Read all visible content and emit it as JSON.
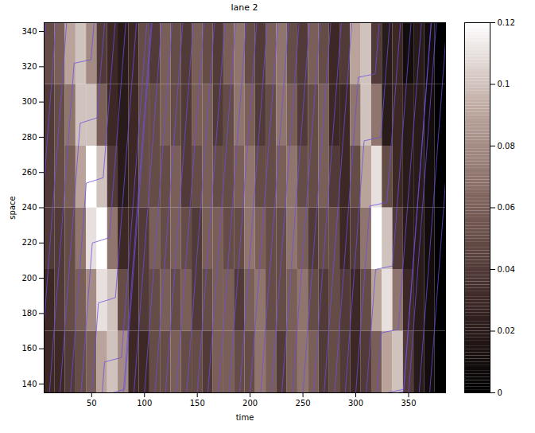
{
  "chart_data": {
    "type": "heatmap",
    "title": "lane 2",
    "x_label": "time",
    "y_label": "space",
    "xlim": [
      5,
      385
    ],
    "xticks": [
      50,
      100,
      150,
      200,
      250,
      300,
      350
    ],
    "ylim": [
      135,
      345
    ],
    "yticks": [
      140,
      160,
      180,
      200,
      220,
      240,
      260,
      280,
      300,
      320,
      340
    ],
    "heatmap": {
      "x_edges": [
        5,
        15,
        25,
        35,
        45,
        55,
        65,
        75,
        85,
        95,
        105,
        115,
        125,
        135,
        145,
        155,
        165,
        175,
        185,
        195,
        205,
        215,
        225,
        235,
        245,
        255,
        265,
        275,
        285,
        295,
        305,
        315,
        325,
        335,
        345,
        355,
        365,
        375,
        385
      ],
      "y_edges": [
        135,
        170,
        205,
        240,
        275,
        310,
        345
      ],
      "cells": [
        [
          0.03,
          0.03,
          0.04,
          0.05,
          0.06,
          0.09,
          0.1,
          0.08,
          0.03,
          0.03,
          0.05,
          0.05,
          0.06,
          0.05,
          0.05,
          0.04,
          0.06,
          0.06,
          0.05,
          0.05,
          0.07,
          0.06,
          0.04,
          0.06,
          0.07,
          0.06,
          0.04,
          0.05,
          0.04,
          0.03,
          0.04,
          0.06,
          0.09,
          0.1,
          0.04,
          0.02,
          0.01,
          0.0
        ],
        [
          0.03,
          0.04,
          0.05,
          0.06,
          0.08,
          0.11,
          0.1,
          0.05,
          0.03,
          0.04,
          0.05,
          0.06,
          0.05,
          0.06,
          0.04,
          0.05,
          0.06,
          0.06,
          0.04,
          0.06,
          0.07,
          0.05,
          0.05,
          0.06,
          0.07,
          0.05,
          0.04,
          0.05,
          0.04,
          0.03,
          0.05,
          0.09,
          0.11,
          0.07,
          0.03,
          0.02,
          0.01,
          0.0
        ],
        [
          0.04,
          0.04,
          0.05,
          0.07,
          0.11,
          0.12,
          0.07,
          0.03,
          0.03,
          0.04,
          0.06,
          0.05,
          0.06,
          0.05,
          0.04,
          0.06,
          0.06,
          0.05,
          0.05,
          0.07,
          0.06,
          0.05,
          0.05,
          0.07,
          0.06,
          0.04,
          0.05,
          0.05,
          0.03,
          0.04,
          0.07,
          0.12,
          0.1,
          0.04,
          0.02,
          0.02,
          0.01,
          0.0
        ],
        [
          0.04,
          0.05,
          0.06,
          0.09,
          0.12,
          0.1,
          0.04,
          0.02,
          0.03,
          0.05,
          0.05,
          0.05,
          0.06,
          0.04,
          0.05,
          0.06,
          0.05,
          0.05,
          0.06,
          0.07,
          0.05,
          0.05,
          0.06,
          0.07,
          0.05,
          0.05,
          0.06,
          0.04,
          0.03,
          0.05,
          0.09,
          0.11,
          0.05,
          0.03,
          0.02,
          0.02,
          0.01,
          0.0
        ],
        [
          0.04,
          0.05,
          0.07,
          0.1,
          0.1,
          0.06,
          0.03,
          0.02,
          0.03,
          0.05,
          0.05,
          0.06,
          0.05,
          0.04,
          0.06,
          0.06,
          0.04,
          0.05,
          0.07,
          0.06,
          0.04,
          0.05,
          0.07,
          0.06,
          0.04,
          0.05,
          0.06,
          0.03,
          0.03,
          0.07,
          0.1,
          0.07,
          0.02,
          0.03,
          0.02,
          0.02,
          0.01,
          0.0
        ],
        [
          0.05,
          0.06,
          0.09,
          0.1,
          0.08,
          0.04,
          0.03,
          0.02,
          0.03,
          0.05,
          0.04,
          0.06,
          0.05,
          0.04,
          0.06,
          0.05,
          0.04,
          0.06,
          0.07,
          0.05,
          0.04,
          0.06,
          0.07,
          0.05,
          0.04,
          0.06,
          0.05,
          0.03,
          0.04,
          0.09,
          0.1,
          0.04,
          0.02,
          0.03,
          0.01,
          0.02,
          0.01,
          0.0
        ]
      ]
    },
    "colorbar": {
      "range": [
        0,
        0.12
      ],
      "ticks": [
        0,
        0.02,
        0.04,
        0.06,
        0.08,
        0.1,
        0.12
      ]
    },
    "trajectories": {
      "color": "#6b4fe0",
      "series": [
        {
          "x": [
            -20,
            6.3
          ],
          "y": [
            135,
            345
          ]
        },
        {
          "x": [
            -10,
            16.3
          ],
          "y": [
            135,
            345
          ]
        },
        {
          "x": [
            0,
            26.3
          ],
          "y": [
            135,
            345
          ]
        },
        {
          "x": [
            10,
            33.4,
            49.4,
            52.3
          ],
          "y": [
            135,
            322,
            324,
            345
          ]
        },
        {
          "x": [
            20,
            39.1,
            55.1,
            62.2
          ],
          "y": [
            135,
            288,
            291,
            345
          ]
        },
        {
          "x": [
            30,
            44.9,
            60.9,
            72.3
          ],
          "y": [
            135,
            254,
            257,
            345
          ]
        },
        {
          "x": [
            40,
            50.6,
            66.7,
            82.3
          ],
          "y": [
            135,
            220,
            223,
            345
          ]
        },
        {
          "x": [
            50,
            56.4,
            72.5,
            92.4
          ],
          "y": [
            135,
            186,
            189,
            345
          ]
        },
        {
          "x": [
            60,
            62.2,
            78.2,
            102.3
          ],
          "y": [
            135,
            152.5,
            155,
            345
          ]
        },
        {
          "x": [
            70,
            81.2,
            107.2
          ],
          "y": [
            135,
            137,
            345
          ]
        },
        {
          "x": [
            80,
            106.3
          ],
          "y": [
            135,
            345
          ]
        },
        {
          "x": [
            90,
            116.3
          ],
          "y": [
            135,
            345
          ]
        },
        {
          "x": [
            100,
            126.3
          ],
          "y": [
            135,
            345
          ]
        },
        {
          "x": [
            110,
            136.3
          ],
          "y": [
            135,
            345
          ]
        },
        {
          "x": [
            120,
            146.3
          ],
          "y": [
            135,
            345
          ]
        },
        {
          "x": [
            130,
            156.3
          ],
          "y": [
            135,
            345
          ]
        },
        {
          "x": [
            140,
            166.3
          ],
          "y": [
            135,
            345
          ]
        },
        {
          "x": [
            150,
            176.3
          ],
          "y": [
            135,
            345
          ]
        },
        {
          "x": [
            160,
            186.3
          ],
          "y": [
            135,
            345
          ]
        },
        {
          "x": [
            170,
            196.3
          ],
          "y": [
            135,
            345
          ]
        },
        {
          "x": [
            180,
            206.3
          ],
          "y": [
            135,
            345
          ]
        },
        {
          "x": [
            190,
            216.3
          ],
          "y": [
            135,
            345
          ]
        },
        {
          "x": [
            200,
            226.3
          ],
          "y": [
            135,
            345
          ]
        },
        {
          "x": [
            210,
            236.3
          ],
          "y": [
            135,
            345
          ]
        },
        {
          "x": [
            220,
            246.3
          ],
          "y": [
            135,
            345
          ]
        },
        {
          "x": [
            230,
            256.3
          ],
          "y": [
            135,
            345
          ]
        },
        {
          "x": [
            240,
            266.3
          ],
          "y": [
            135,
            345
          ]
        },
        {
          "x": [
            250,
            276.3
          ],
          "y": [
            135,
            345
          ]
        },
        {
          "x": [
            260,
            286.3
          ],
          "y": [
            135,
            345
          ]
        },
        {
          "x": [
            270,
            296.3
          ],
          "y": [
            135,
            345
          ]
        },
        {
          "x": [
            280,
            302.4,
            318.4,
            322.3
          ],
          "y": [
            135,
            314,
            316,
            345
          ]
        },
        {
          "x": [
            290,
            307.9,
            323.8,
            332.2
          ],
          "y": [
            135,
            278,
            280,
            345
          ]
        },
        {
          "x": [
            300,
            313.3,
            329.4,
            342.4
          ],
          "y": [
            135,
            241,
            243,
            345
          ]
        },
        {
          "x": [
            310,
            318.8,
            334.8,
            352.3
          ],
          "y": [
            135,
            205,
            207,
            345
          ]
        },
        {
          "x": [
            320,
            324.3,
            340.2,
            362.2
          ],
          "y": [
            135,
            169,
            171,
            345
          ]
        },
        {
          "x": [
            330,
            345.3,
            371.3
          ],
          "y": [
            135,
            137,
            345
          ]
        },
        {
          "x": [
            340,
            345.3,
            371.5
          ],
          "y": [
            135,
            136,
            345
          ]
        },
        {
          "x": [
            350,
            376.3
          ],
          "y": [
            135,
            345
          ]
        },
        {
          "x": [
            360,
            386.3
          ],
          "y": [
            135,
            345
          ]
        },
        {
          "x": [
            370,
            396.3
          ],
          "y": [
            135,
            345
          ]
        }
      ]
    }
  }
}
